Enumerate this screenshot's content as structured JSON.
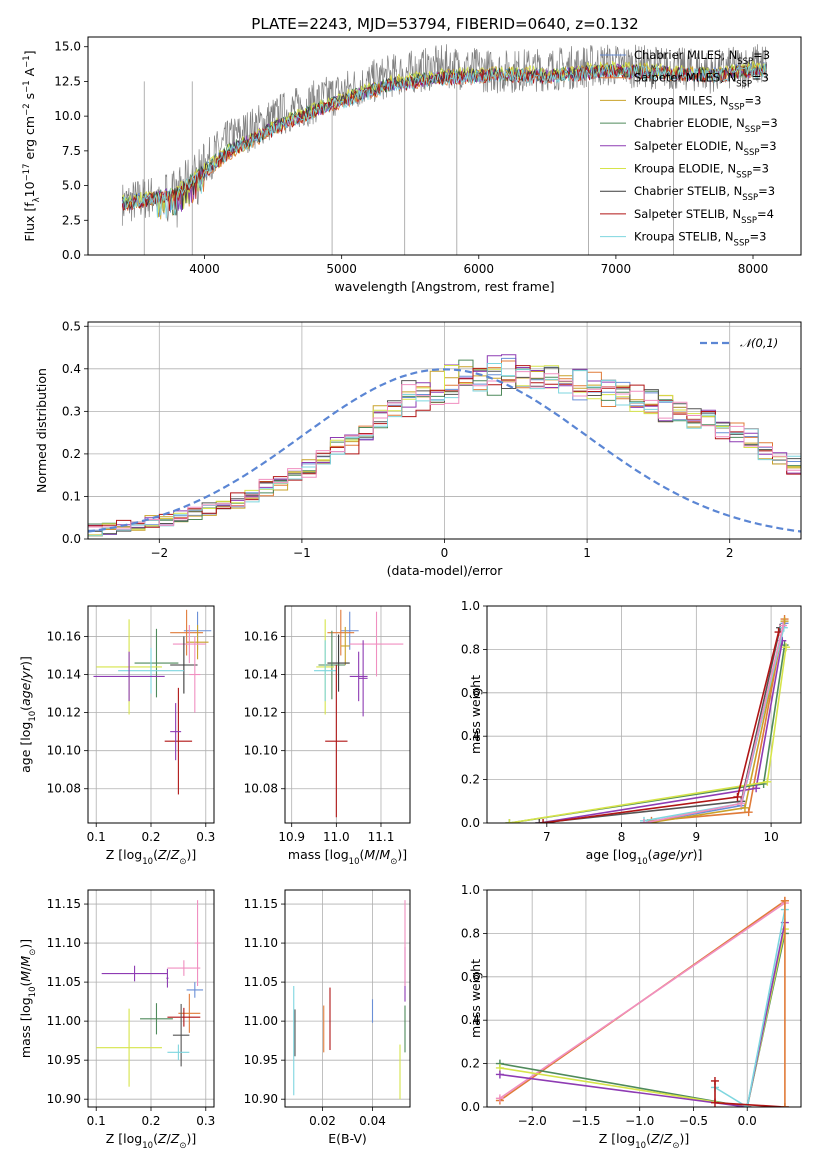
{
  "figure_title": "PLATE=2243, MJD=53794, FIBERID=0640, z=0.132",
  "colors": [
    "#6a8fd6",
    "#e07b39",
    "#c9a22a",
    "#4f8a5b",
    "#8e3bb3",
    "#d6e44a",
    "#555555",
    "#b01515",
    "#7ed6df",
    "#f08fc0",
    "#3a3a3a"
  ],
  "chart_data": [
    {
      "id": "spectrum",
      "type": "line",
      "xlabel": "wavelength [Angstrom, rest frame]",
      "ylabel": "Flux [f_λ 10^-17 erg cm^-2 s^-1 A^-1]",
      "xlim": [
        3150,
        8350
      ],
      "ylim": [
        0,
        15.7
      ],
      "xticks": [
        4000,
        5000,
        6000,
        7000,
        8000
      ],
      "yticks": [
        0.0,
        2.5,
        5.0,
        7.5,
        10.0,
        12.5,
        15.0
      ],
      "grid": false,
      "legend_position": "top-right",
      "spectrum_range": [
        3400,
        8100
      ],
      "series": [
        {
          "name": "Chabrier MILES, N_SSP=3",
          "flux": [
            3.8,
            4.4,
            7.5,
            9.5,
            11.0,
            12.3,
            12.8,
            13.0,
            12.9,
            13.3,
            13.2,
            13.0,
            13.5
          ]
        },
        {
          "name": "Salpeter MILES, N_SSP=3",
          "flux": [
            3.6,
            4.3,
            7.3,
            9.4,
            10.9,
            12.2,
            12.7,
            12.9,
            12.8,
            13.2,
            13.1,
            12.9,
            13.4
          ]
        },
        {
          "name": "Kroupa MILES, N_SSP=3",
          "flux": [
            3.7,
            4.3,
            7.4,
            9.5,
            11.0,
            12.4,
            12.9,
            13.1,
            13.0,
            13.4,
            13.3,
            13.0,
            13.5
          ]
        },
        {
          "name": "Chabrier ELODIE, N_SSP=3",
          "flux": [
            3.7,
            4.5,
            7.6,
            9.6,
            11.1,
            12.3,
            12.9,
            13.0,
            13.0,
            13.3,
            13.1,
            13.0,
            13.4
          ]
        },
        {
          "name": "Salpeter ELODIE, N_SSP=3",
          "flux": [
            3.6,
            4.4,
            7.5,
            9.5,
            11.0,
            12.3,
            12.8,
            13.0,
            12.9,
            13.3,
            13.1,
            12.9,
            13.4
          ]
        },
        {
          "name": "Kroupa ELODIE, N_SSP=3",
          "flux": [
            3.8,
            4.5,
            7.6,
            9.6,
            11.2,
            12.5,
            13.0,
            13.2,
            13.1,
            13.5,
            13.3,
            13.1,
            13.6
          ]
        },
        {
          "name": "Chabrier STELIB, N_SSP=3",
          "flux": [
            3.7,
            4.4,
            7.5,
            9.5,
            11.0,
            12.3,
            12.8,
            13.0,
            12.9,
            13.3,
            13.2,
            13.0,
            13.4
          ]
        },
        {
          "name": "Salpeter STELIB, N_SSP=4",
          "flux": [
            3.6,
            4.3,
            7.4,
            9.4,
            10.9,
            12.2,
            12.7,
            12.9,
            12.8,
            13.2,
            13.1,
            12.9,
            13.3
          ]
        },
        {
          "name": "Kroupa STELIB, N_SSP=3",
          "flux": [
            3.7,
            4.4,
            7.4,
            9.4,
            10.9,
            12.2,
            12.7,
            12.9,
            12.8,
            13.2,
            13.1,
            12.9,
            13.3
          ]
        }
      ],
      "data_flux": [
        3.7,
        4.6,
        8.3,
        10.2,
        11.6,
        12.9,
        13.6,
        13.2,
        13.4,
        13.7,
        13.5,
        13.2,
        13.8
      ],
      "masked_pixels": [
        3560,
        3910,
        4930,
        5460,
        5840,
        6800,
        7420
      ]
    },
    {
      "id": "residuals",
      "type": "step",
      "xlabel": "(data-model)/error",
      "ylabel": "Normed distribution",
      "xlim": [
        -2.5,
        2.5
      ],
      "ylim": [
        0,
        0.51
      ],
      "xticks": [
        -2,
        -1,
        0,
        1,
        2
      ],
      "yticks": [
        0.0,
        0.1,
        0.2,
        0.3,
        0.4,
        0.5
      ],
      "grid": true,
      "legend_position": "top-right",
      "reference_curve": {
        "name": "𝒩(0,1)",
        "mean": 0,
        "sigma": 1
      },
      "bin_width": 0.1,
      "base_histogram": [
        0.02,
        0.025,
        0.03,
        0.035,
        0.04,
        0.045,
        0.05,
        0.06,
        0.07,
        0.08,
        0.09,
        0.1,
        0.12,
        0.13,
        0.15,
        0.17,
        0.19,
        0.21,
        0.23,
        0.26,
        0.28,
        0.3,
        0.32,
        0.33,
        0.35,
        0.36,
        0.37,
        0.37,
        0.38,
        0.38,
        0.38,
        0.37,
        0.37,
        0.36,
        0.36,
        0.35,
        0.35,
        0.34,
        0.33,
        0.32,
        0.31,
        0.3,
        0.29,
        0.28,
        0.26,
        0.25,
        0.23,
        0.21,
        0.19,
        0.17,
        0.15,
        0.14,
        0.12,
        0.11,
        0.1,
        0.09,
        0.08,
        0.07,
        0.06,
        0.05
      ]
    },
    {
      "id": "age-vs-Z",
      "type": "errorbar",
      "xlabel": "Z [log10(Z/Z⊙)]",
      "ylabel": "age [log10(age/yr)]",
      "xlim": [
        0.085,
        0.315
      ],
      "ylim": [
        10.062,
        10.176
      ],
      "xticks": [
        0.1,
        0.2,
        0.3
      ],
      "yticks": [
        10.08,
        10.1,
        10.12,
        10.14,
        10.16
      ],
      "grid": true,
      "points": [
        {
          "x": 0.285,
          "y": 10.163,
          "xerr": 0.025,
          "yerr": 0.01,
          "c": 0
        },
        {
          "x": 0.265,
          "y": 10.162,
          "xerr": 0.03,
          "yerr": 0.012,
          "c": 1
        },
        {
          "x": 0.285,
          "y": 10.157,
          "xerr": 0.02,
          "yerr": 0.009,
          "c": 2
        },
        {
          "x": 0.27,
          "y": 10.156,
          "xerr": 0.03,
          "yerr": 0.01,
          "c": 9
        },
        {
          "x": 0.21,
          "y": 10.146,
          "xerr": 0.04,
          "yerr": 0.018,
          "c": 3
        },
        {
          "x": 0.26,
          "y": 10.145,
          "xerr": 0.025,
          "yerr": 0.015,
          "c": 10
        },
        {
          "x": 0.16,
          "y": 10.144,
          "xerr": 0.06,
          "yerr": 0.025,
          "c": 5
        },
        {
          "x": 0.2,
          "y": 10.142,
          "xerr": 0.06,
          "yerr": 0.012,
          "c": 8
        },
        {
          "x": 0.16,
          "y": 10.139,
          "xerr": 0.065,
          "yerr": 0.013,
          "c": 4
        },
        {
          "x": 0.28,
          "y": 10.14,
          "xerr": 0.01,
          "yerr": 0.02,
          "c": 9
        },
        {
          "x": 0.25,
          "y": 10.105,
          "xerr": 0.025,
          "yerr": 0.028,
          "c": 7
        },
        {
          "x": 0.245,
          "y": 10.11,
          "xerr": 0.01,
          "yerr": 0.015,
          "c": 4
        }
      ]
    },
    {
      "id": "age-vs-mass",
      "type": "errorbar",
      "xlabel": "mass [log10(M/M⊙)]",
      "ylabel": "",
      "xlim": [
        10.885,
        11.165
      ],
      "ylim": [
        10.062,
        10.176
      ],
      "xticks": [
        10.9,
        11.0,
        11.1
      ],
      "yticks": [
        10.08,
        10.1,
        10.12,
        10.14,
        10.16
      ],
      "grid": true,
      "points": [
        {
          "x": 11.03,
          "y": 10.163,
          "xerr": 0.02,
          "yerr": 0.01,
          "c": 0
        },
        {
          "x": 11.01,
          "y": 10.162,
          "xerr": 0.03,
          "yerr": 0.012,
          "c": 1
        },
        {
          "x": 11.09,
          "y": 10.156,
          "xerr": 0.06,
          "yerr": 0.017,
          "c": 9
        },
        {
          "x": 11.02,
          "y": 10.155,
          "xerr": 0.01,
          "yerr": 0.01,
          "c": 2
        },
        {
          "x": 11.005,
          "y": 10.146,
          "xerr": 0.025,
          "yerr": 0.015,
          "c": 10
        },
        {
          "x": 10.99,
          "y": 10.145,
          "xerr": 0.03,
          "yerr": 0.018,
          "c": 3
        },
        {
          "x": 10.975,
          "y": 10.144,
          "xerr": 0.02,
          "yerr": 0.025,
          "c": 5
        },
        {
          "x": 10.975,
          "y": 10.142,
          "xerr": 0.025,
          "yerr": 0.016,
          "c": 8
        },
        {
          "x": 11.05,
          "y": 10.139,
          "xerr": 0.02,
          "yerr": 0.013,
          "c": 4
        },
        {
          "x": 11.06,
          "y": 10.138,
          "xerr": 0.01,
          "yerr": 0.02,
          "c": 4
        },
        {
          "x": 11.0,
          "y": 10.105,
          "xerr": 0.025,
          "yerr": 0.04,
          "c": 7
        }
      ]
    },
    {
      "id": "mass-weight-vs-age",
      "type": "line",
      "xlabel": "age [log10(age/yr)]",
      "ylabel": "mass weight",
      "xlim": [
        6.2,
        10.4
      ],
      "ylim": [
        0,
        1.0
      ],
      "xticks": [
        7,
        8,
        9,
        10
      ],
      "yticks": [
        0.0,
        0.2,
        0.4,
        0.6,
        0.8,
        1.0
      ],
      "grid": true,
      "series": [
        {
          "c": 0,
          "x": [
            8.3,
            9.6,
            10.18
          ],
          "y": [
            0.0,
            0.08,
            0.92
          ]
        },
        {
          "c": 1,
          "x": [
            8.4,
            9.7,
            10.18
          ],
          "y": [
            0.01,
            0.05,
            0.94
          ]
        },
        {
          "c": 2,
          "x": [
            8.35,
            9.65,
            10.18
          ],
          "y": [
            0.0,
            0.07,
            0.93
          ]
        },
        {
          "c": 3,
          "x": [
            6.5,
            9.9,
            10.18
          ],
          "y": [
            0.0,
            0.18,
            0.82
          ]
        },
        {
          "c": 4,
          "x": [
            6.9,
            9.8,
            10.15
          ],
          "y": [
            0.0,
            0.16,
            0.84
          ]
        },
        {
          "c": 5,
          "x": [
            6.5,
            9.95,
            10.2
          ],
          "y": [
            0.0,
            0.19,
            0.81
          ]
        },
        {
          "c": 6,
          "x": [
            6.9,
            9.6,
            10.12
          ],
          "y": [
            0.0,
            0.1,
            0.9
          ]
        },
        {
          "c": 7,
          "x": [
            6.95,
            9.55,
            10.1
          ],
          "y": [
            0.0,
            0.12,
            0.88
          ]
        },
        {
          "c": 8,
          "x": [
            8.3,
            9.6,
            10.17
          ],
          "y": [
            0.01,
            0.09,
            0.9
          ]
        },
        {
          "c": 9,
          "x": [
            8.3,
            9.6,
            10.16
          ],
          "y": [
            0.0,
            0.09,
            0.91
          ]
        }
      ]
    },
    {
      "id": "mass-vs-Z",
      "type": "errorbar",
      "xlabel": "Z [log10(Z/Z⊙)]",
      "ylabel": "mass [log10(M/M⊙)]",
      "xlim": [
        0.085,
        0.315
      ],
      "ylim": [
        10.89,
        11.168
      ],
      "xticks": [
        0.1,
        0.2,
        0.3
      ],
      "yticks": [
        10.9,
        10.95,
        11.0,
        11.05,
        11.1,
        11.15
      ],
      "grid": true,
      "points": [
        {
          "x": 0.285,
          "y": 11.1,
          "xerr": 0.005,
          "yerr": 0.055,
          "c": 9
        },
        {
          "x": 0.26,
          "y": 11.068,
          "xerr": 0.03,
          "yerr": 0.01,
          "c": 9
        },
        {
          "x": 0.17,
          "y": 11.061,
          "xerr": 0.06,
          "yerr": 0.01,
          "c": 4
        },
        {
          "x": 0.28,
          "y": 11.04,
          "xerr": 0.015,
          "yerr": 0.01,
          "c": 0
        },
        {
          "x": 0.27,
          "y": 11.01,
          "xerr": 0.02,
          "yerr": 0.025,
          "c": 1
        },
        {
          "x": 0.26,
          "y": 11.005,
          "xerr": 0.03,
          "yerr": 0.012,
          "c": 7
        },
        {
          "x": 0.21,
          "y": 11.003,
          "xerr": 0.03,
          "yerr": 0.02,
          "c": 3
        },
        {
          "x": 0.255,
          "y": 10.982,
          "xerr": 0.015,
          "yerr": 0.04,
          "c": 6
        },
        {
          "x": 0.16,
          "y": 10.966,
          "xerr": 0.06,
          "yerr": 0.05,
          "c": 5
        },
        {
          "x": 0.25,
          "y": 10.96,
          "xerr": 0.02,
          "yerr": 0.01,
          "c": 8
        },
        {
          "x": 0.23,
          "y": 11.055,
          "xerr": 0.002,
          "yerr": 0.012,
          "c": 4
        }
      ]
    },
    {
      "id": "mass-vs-EBV",
      "type": "errorbar",
      "xlabel": "E(B-V)",
      "ylabel": "",
      "xlim": [
        0.005,
        0.055
      ],
      "ylim": [
        10.89,
        11.168
      ],
      "xticks": [
        0.02,
        0.04
      ],
      "yticks": [
        10.9,
        10.95,
        11.0,
        11.05,
        11.1,
        11.15
      ],
      "grid": true,
      "points": [
        {
          "x": 0.0085,
          "y": 10.975,
          "yerr": 0.07,
          "c": 8
        },
        {
          "x": 0.009,
          "y": 10.985,
          "yerr": 0.03,
          "c": 6
        },
        {
          "x": 0.0205,
          "y": 10.99,
          "yerr": 0.03,
          "c": 1
        },
        {
          "x": 0.023,
          "y": 11.003,
          "yerr": 0.04,
          "c": 7
        },
        {
          "x": 0.04,
          "y": 11.013,
          "yerr": 0.015,
          "c": 0
        },
        {
          "x": 0.051,
          "y": 10.935,
          "yerr": 0.035,
          "c": 5
        },
        {
          "x": 0.053,
          "y": 11.06,
          "yerr": 0.035,
          "c": 4
        },
        {
          "x": 0.053,
          "y": 11.1,
          "yerr": 0.055,
          "c": 9
        },
        {
          "x": 0.053,
          "y": 10.99,
          "yerr": 0.03,
          "c": 3
        }
      ]
    },
    {
      "id": "mass-weight-vs-Z",
      "type": "line",
      "xlabel": "Z [log10(Z/Z⊙)]",
      "ylabel": "mass weight",
      "xlim": [
        -2.42,
        0.5
      ],
      "ylim": [
        0,
        1.0
      ],
      "xticks": [
        -2.0,
        -1.5,
        -1.0,
        -0.5,
        0.0
      ],
      "yticks": [
        0.0,
        0.2,
        0.4,
        0.6,
        0.8,
        1.0
      ],
      "grid": true,
      "series": [
        {
          "c": 1,
          "x": [
            -2.3,
            0.35
          ],
          "y": [
            0.03,
            0.95
          ]
        },
        {
          "c": 9,
          "x": [
            -2.3,
            0.35
          ],
          "y": [
            0.04,
            0.94
          ]
        },
        {
          "c": 3,
          "x": [
            -2.3,
            0.0,
            0.35
          ],
          "y": [
            0.2,
            0.0,
            0.8
          ]
        },
        {
          "c": 5,
          "x": [
            -2.3,
            0.0,
            0.35
          ],
          "y": [
            0.18,
            0.0,
            0.82
          ]
        },
        {
          "c": 4,
          "x": [
            -2.3,
            0.0,
            0.35
          ],
          "y": [
            0.15,
            0.0,
            0.85
          ]
        },
        {
          "c": 8,
          "x": [
            -0.3,
            0.0,
            0.35
          ],
          "y": [
            0.09,
            0.0,
            0.91
          ]
        },
        {
          "c": 7,
          "x": [
            -0.3,
            -0.3,
            0.35
          ],
          "y": [
            0.12,
            0.02,
            0.0
          ]
        },
        {
          "c": 1,
          "x": [
            0.35,
            0.35
          ],
          "y": [
            0.0,
            0.95
          ]
        }
      ]
    }
  ]
}
